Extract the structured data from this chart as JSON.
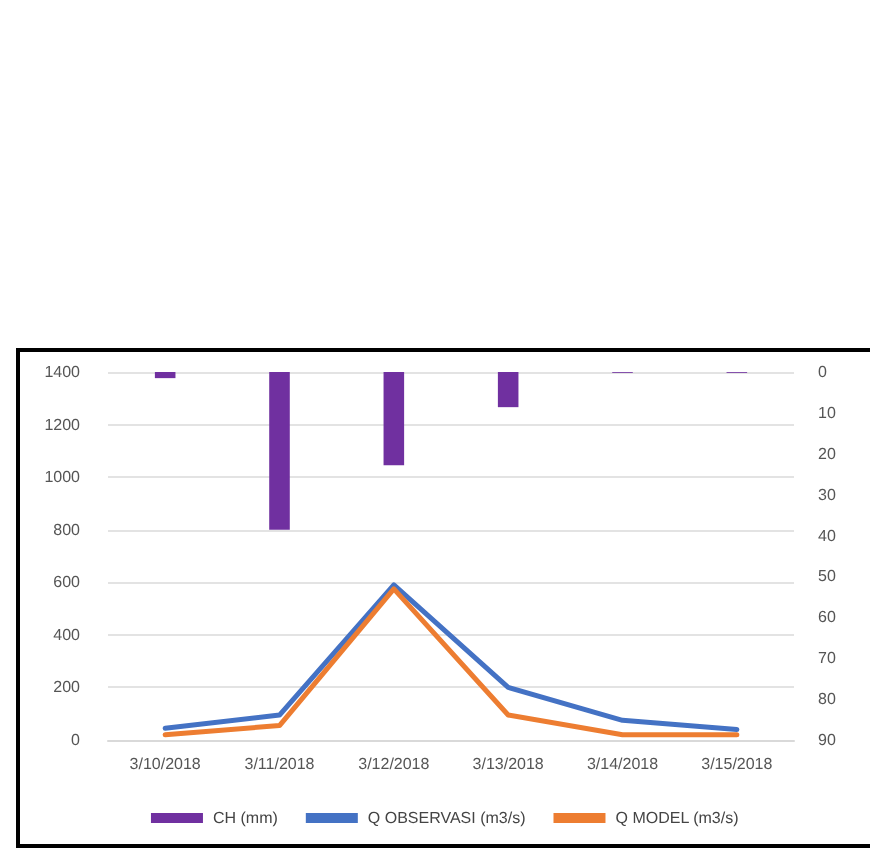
{
  "chart_data": {
    "type": "line",
    "categories": [
      "3/10/2018",
      "3/11/2018",
      "3/12/2018",
      "3/13/2018",
      "3/14/2018",
      "3/15/2018"
    ],
    "series": [
      {
        "name": "CH (mm)",
        "type": "bar",
        "axis": "y2",
        "color": "#7030a0",
        "values": [
          1.5,
          38.6,
          22.8,
          8.6,
          0.2,
          0.2
        ]
      },
      {
        "name": "Q OBSERVASI (m3/s)",
        "color": "#4472c4",
        "values": [
          45,
          95,
          590,
          200,
          75,
          40
        ]
      },
      {
        "name": "Q MODEL (m3/s)",
        "color": "#ed7d31",
        "values": [
          20,
          55,
          575,
          95,
          20,
          20
        ]
      }
    ],
    "ylim": [
      0,
      1400
    ],
    "yticks": [
      0,
      200,
      400,
      600,
      800,
      1000,
      1200,
      1400
    ],
    "y2lim": [
      90,
      0
    ],
    "y2ticks": [
      0,
      10,
      20,
      30,
      40,
      50,
      60,
      70,
      80,
      90
    ],
    "grid": "y",
    "legend": "bottom",
    "marker": "none"
  }
}
